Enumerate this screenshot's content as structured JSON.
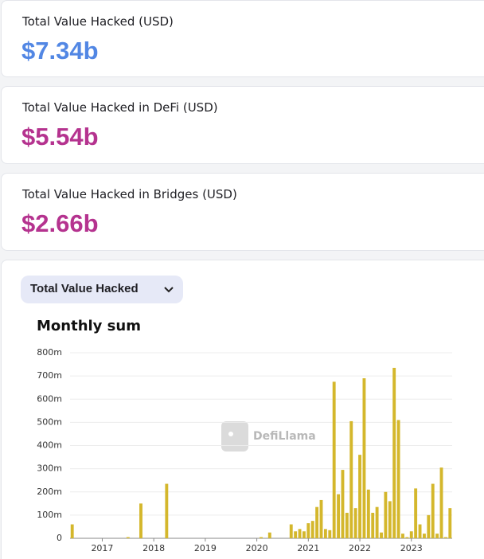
{
  "cards": [
    {
      "label": "Total Value Hacked (USD)",
      "value": "$7.34b",
      "color": "#5287e4"
    },
    {
      "label": "Total Value Hacked in DeFi (USD)",
      "value": "$5.54b",
      "color": "#b5338f"
    },
    {
      "label": "Total Value Hacked in Bridges (USD)",
      "value": "$2.66b",
      "color": "#b5338f"
    }
  ],
  "selector": {
    "label": "Total Value Hacked"
  },
  "watermark": "DefiLlama",
  "chart_data": {
    "type": "bar",
    "title": "Monthly sum",
    "categories": [
      null,
      null,
      null,
      null,
      null,
      null,
      null,
      "2017",
      null,
      null,
      null,
      null,
      null,
      null,
      null,
      null,
      null,
      null,
      null,
      "2018",
      null,
      null,
      null,
      null,
      null,
      null,
      null,
      null,
      null,
      null,
      null,
      "2019",
      null,
      null,
      null,
      null,
      null,
      null,
      null,
      null,
      null,
      null,
      null,
      "2020",
      null,
      null,
      null,
      null,
      null,
      null,
      null,
      null,
      null,
      null,
      null,
      "2021",
      null,
      null,
      null,
      null,
      null,
      null,
      null,
      null,
      null,
      null,
      null,
      "2022",
      null,
      null,
      null,
      null,
      null,
      null,
      null,
      null,
      null,
      null,
      null,
      "2023",
      null,
      null,
      null,
      null,
      null,
      null,
      null,
      null,
      null
    ],
    "values": [
      60,
      0,
      0,
      0,
      0,
      0,
      0,
      0,
      0,
      0,
      0,
      0,
      0,
      5,
      0,
      0,
      150,
      0,
      0,
      0,
      0,
      0,
      235,
      0,
      0,
      0,
      0,
      0,
      0,
      0,
      0,
      0,
      0,
      0,
      0,
      0,
      0,
      0,
      0,
      0,
      0,
      0,
      0,
      0,
      5,
      0,
      25,
      0,
      0,
      0,
      0,
      60,
      30,
      40,
      30,
      65,
      75,
      135,
      165,
      40,
      35,
      675,
      190,
      295,
      110,
      505,
      130,
      360,
      690,
      210,
      110,
      135,
      25,
      200,
      160,
      735,
      510,
      20,
      5,
      30,
      215,
      60,
      20,
      100,
      235,
      20,
      305,
      5,
      130
    ],
    "color": "#d4b72c",
    "ylim": [
      0,
      800
    ],
    "yticks": [
      0,
      {
        "value": 100,
        "label": "100m"
      },
      {
        "value": 200,
        "label": "200m"
      },
      {
        "value": 300,
        "label": "300m"
      },
      {
        "value": 400,
        "label": "400m"
      },
      {
        "value": 500,
        "label": "500m"
      },
      {
        "value": 600,
        "label": "600m"
      },
      {
        "value": 700,
        "label": "700m"
      },
      {
        "value": 800,
        "label": "800m"
      }
    ],
    "grid": true
  }
}
